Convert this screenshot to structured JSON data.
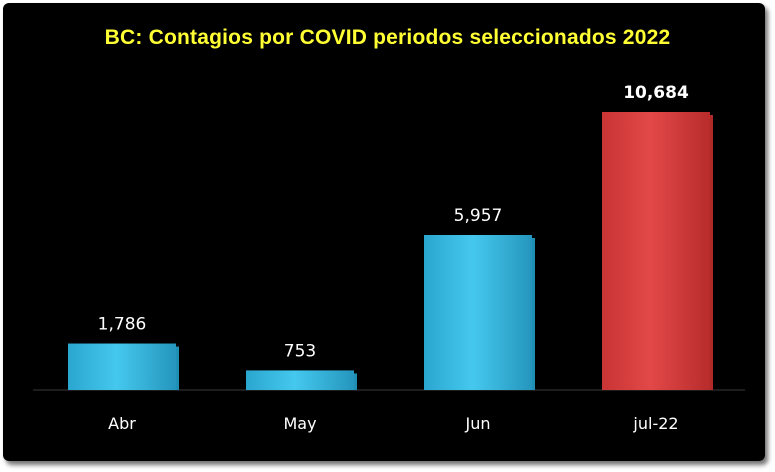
{
  "chart_data": {
    "type": "bar",
    "title": "BC: Contagios por COVID periodos seleccionados 2022",
    "categories": [
      "Abr",
      "May",
      "Jun",
      "jul-22"
    ],
    "values": [
      1786,
      753,
      5957,
      10684
    ],
    "value_labels": [
      "1,786",
      "753",
      "5,957",
      "10,684"
    ],
    "highlight_index": 3,
    "xlabel": "",
    "ylabel": "",
    "ylim": [
      0,
      10684
    ],
    "grid": false,
    "legend": "none"
  },
  "colors": {
    "bar": "#3ec3e8",
    "bar_dark": "#1f8fb4",
    "highlight": "#dd4040",
    "highlight_dark": "#b02a2a",
    "title": "#ffff33",
    "background": "#000000",
    "text": "#ffffff"
  }
}
